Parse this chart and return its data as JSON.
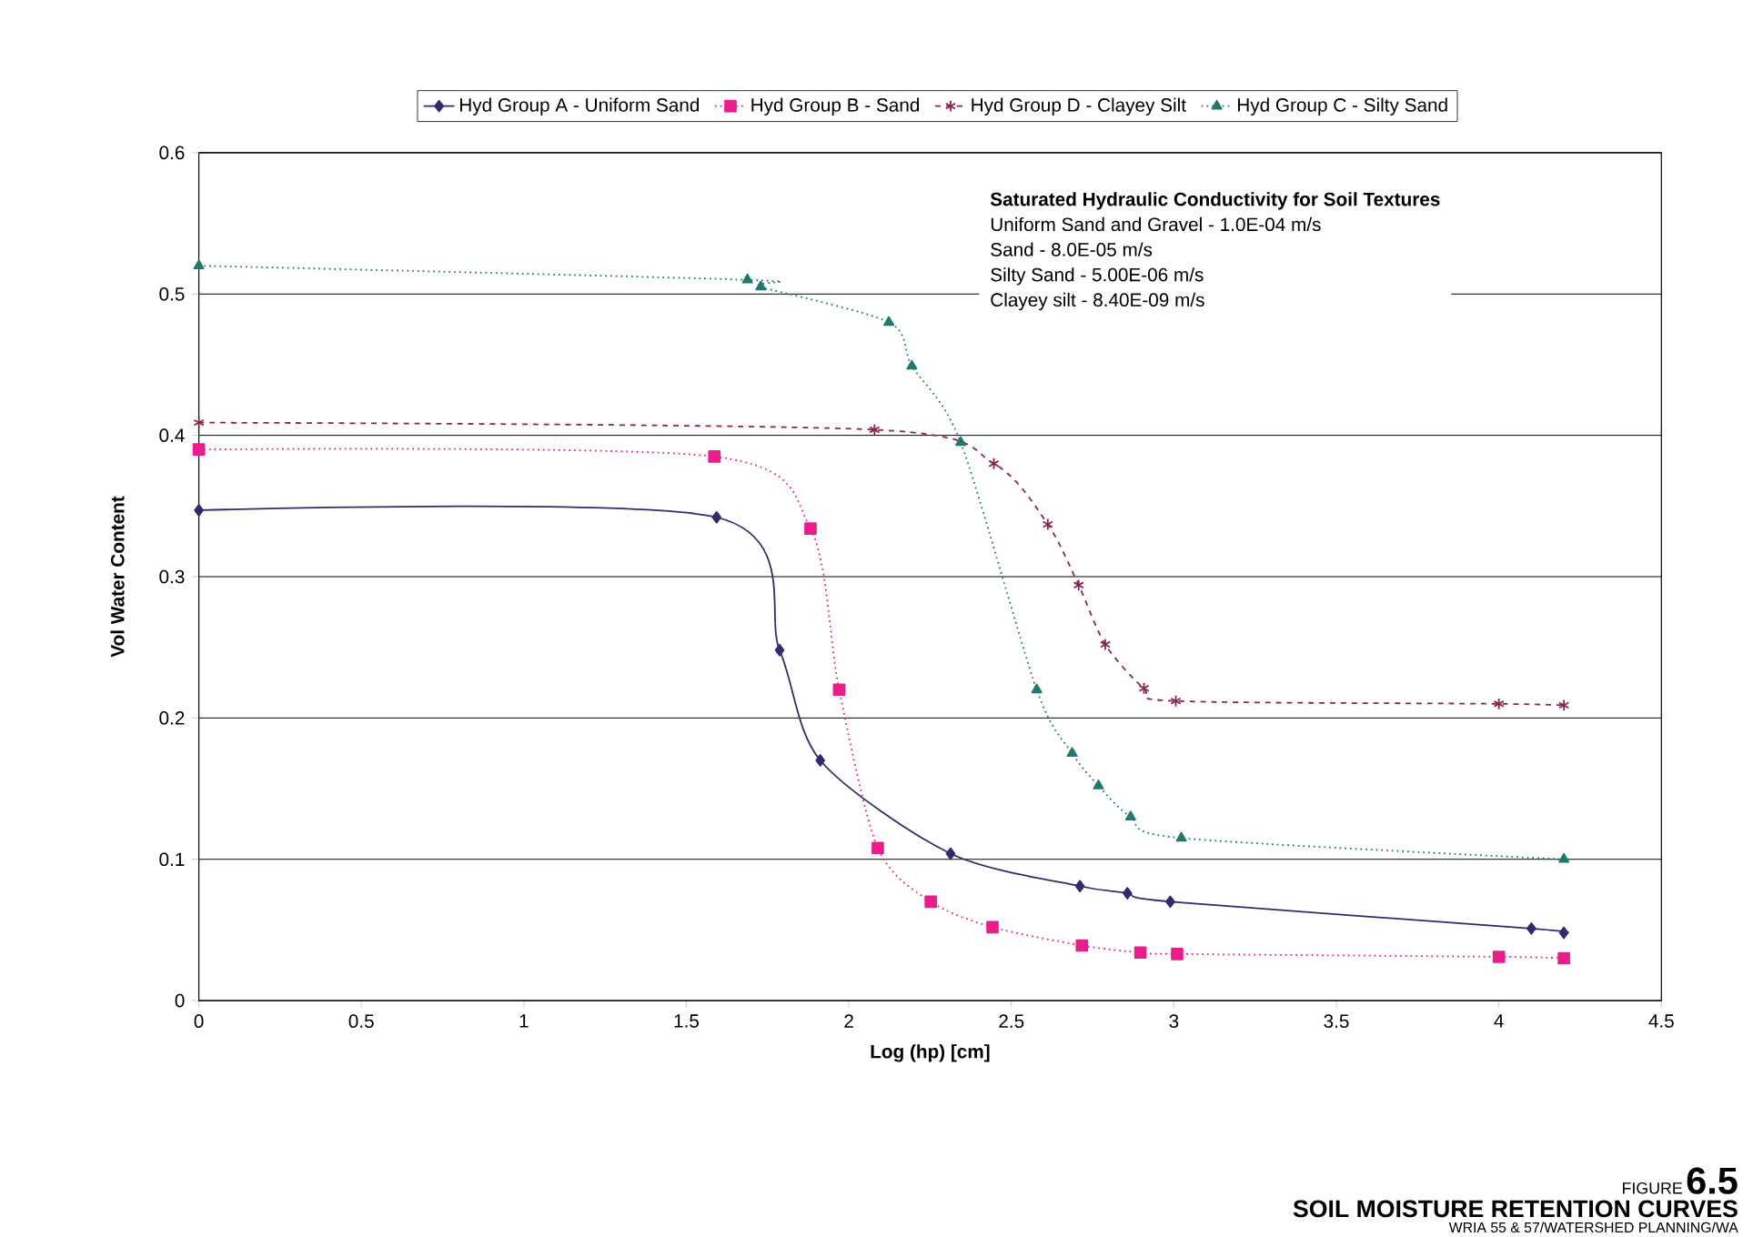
{
  "chart_data": {
    "type": "line",
    "title": "SOIL MOISTURE RETENTION CURVES",
    "subtitle": "WRIA 55 & 57/WATERSHED PLANNING/WA",
    "xlabel": "Log (hp) [cm]",
    "ylabel": "Vol Water Content",
    "xlim": [
      0,
      4.5
    ],
    "ylim": [
      0,
      0.6
    ],
    "xticks": [
      0,
      0.5,
      1,
      1.5,
      2,
      2.5,
      3,
      3.5,
      4,
      4.5
    ],
    "yticks": [
      0,
      0.1,
      0.2,
      0.3,
      0.4,
      0.5,
      0.6
    ],
    "grid": "y",
    "legend": "top",
    "annotations": [
      "Saturated Hydraulic Conductivity for Soil Textures",
      "Uniform Sand and Gravel  - 1.0E-04 m/s",
      "Sand - 8.0E-05 m/s",
      "Silty Sand -  5.00E-06 m/s",
      "Clayey silt - 8.40E-09 m/s",
      "FIGURE",
      "6.5"
    ],
    "series": [
      {
        "name": "Hyd Group A - Uniform Sand",
        "color": "#2e2c6e",
        "marker": "diamond",
        "line_style": "solid",
        "x": [
          0,
          1.593,
          1.787,
          1.912,
          2.313,
          2.711,
          2.857,
          2.989,
          4.1,
          4.2
        ],
        "values": [
          0.347,
          0.342,
          0.248,
          0.17,
          0.104,
          0.081,
          0.076,
          0.07,
          0.051,
          0.048
        ]
      },
      {
        "name": "Hyd Group B - Sand",
        "color": "#ec1c8c",
        "marker": "square",
        "line_style": "dotted",
        "x": [
          0,
          1.586,
          1.882,
          1.97,
          2.089,
          2.252,
          2.442,
          2.717,
          2.897,
          3.01,
          4.0,
          4.2
        ],
        "values": [
          0.39,
          0.385,
          0.334,
          0.22,
          0.108,
          0.07,
          0.052,
          0.039,
          0.034,
          0.033,
          0.031,
          0.03
        ]
      },
      {
        "name": "Hyd Group D - Clayey Silt",
        "color": "#8b2252",
        "marker": "cross",
        "line_style": "dashed",
        "x": [
          0,
          2.079,
          2.446,
          2.612,
          2.707,
          2.789,
          2.908,
          3.006,
          4.0,
          4.2
        ],
        "values": [
          0.409,
          0.404,
          0.38,
          0.337,
          0.294,
          0.252,
          0.221,
          0.212,
          0.21,
          0.209
        ]
      },
      {
        "name": "Hyd Group C - Silty Sand",
        "color": "#1f7a6e",
        "marker": "triangle",
        "line_style": "dotted",
        "x": [
          0,
          1.688,
          1.729,
          2.123,
          2.194,
          2.344,
          2.578,
          2.687,
          2.768,
          2.867,
          3.023,
          4.2
        ],
        "values": [
          0.52,
          0.51,
          0.505,
          0.48,
          0.449,
          0.395,
          0.22,
          0.175,
          0.152,
          0.13,
          0.115,
          0.1
        ]
      }
    ]
  }
}
